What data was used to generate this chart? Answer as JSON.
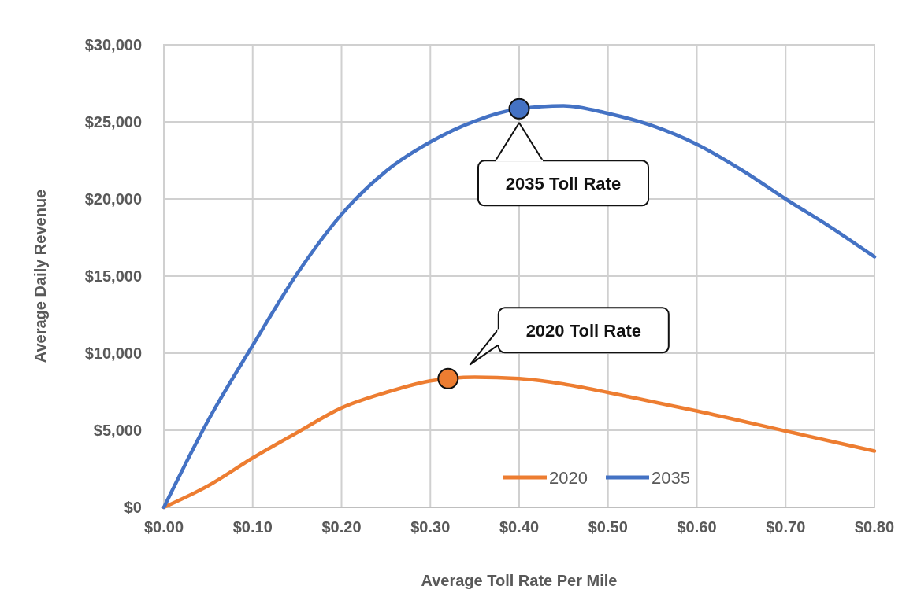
{
  "chart_data": {
    "type": "line",
    "xlabel": "Average Toll Rate Per Mile",
    "ylabel": "Average Daily Revenue",
    "xlim": [
      0,
      0.8
    ],
    "xticks": [
      {
        "value": 0,
        "label": "$0.00"
      },
      {
        "value": 0.1,
        "label": "$0.10"
      },
      {
        "value": 0.2,
        "label": "$0.20"
      },
      {
        "value": 0.3,
        "label": "$0.30"
      },
      {
        "value": 0.4,
        "label": "$0.40"
      },
      {
        "value": 0.5,
        "label": "$0.50"
      },
      {
        "value": 0.6,
        "label": "$0.60"
      },
      {
        "value": 0.7,
        "label": "$0.70"
      },
      {
        "value": 0.8,
        "label": "$0.80"
      }
    ],
    "ylim": [
      0,
      30000
    ],
    "yticks": [
      {
        "value": 0,
        "label": "$0"
      },
      {
        "value": 5000,
        "label": "$5,000"
      },
      {
        "value": 10000,
        "label": "$10,000"
      },
      {
        "value": 15000,
        "label": "$15,000"
      },
      {
        "value": 20000,
        "label": "$20,000"
      },
      {
        "value": 25000,
        "label": "$25,000"
      },
      {
        "value": 30000,
        "label": "$30,000"
      }
    ],
    "grid": true,
    "legend": "bottom",
    "marker": "none",
    "line_style": "solid",
    "series": [
      {
        "name": "2020",
        "color": "#ed7d31",
        "x": [
          0,
          0.05,
          0.1,
          0.15,
          0.2,
          0.25,
          0.3,
          0.35,
          0.4,
          0.45,
          0.5,
          0.55,
          0.6,
          0.7,
          0.8
        ],
        "values": [
          0,
          1400,
          3200,
          4850,
          6450,
          7450,
          8200,
          8450,
          8350,
          8000,
          7450,
          6850,
          6250,
          4950,
          3650
        ]
      },
      {
        "name": "2035",
        "color": "#4472c4",
        "x": [
          0,
          0.05,
          0.1,
          0.15,
          0.2,
          0.25,
          0.3,
          0.35,
          0.4,
          0.45,
          0.5,
          0.55,
          0.6,
          0.65,
          0.7,
          0.75,
          0.8
        ],
        "values": [
          0,
          5650,
          10500,
          15150,
          19000,
          21800,
          23700,
          25050,
          25850,
          26050,
          25550,
          24750,
          23550,
          21900,
          20000,
          18200,
          16250
        ]
      },
      {
        "type": "scatter",
        "color": "#ed7d31",
        "marker": "circle",
        "x": [
          0.32
        ],
        "values": [
          8350
        ]
      },
      {
        "type": "scatter",
        "color": "#4472c4",
        "marker": "circle",
        "x": [
          0.4
        ],
        "values": [
          25850
        ]
      }
    ],
    "annotations": [
      "2035 Toll Rate",
      "2020 Toll Rate"
    ]
  }
}
